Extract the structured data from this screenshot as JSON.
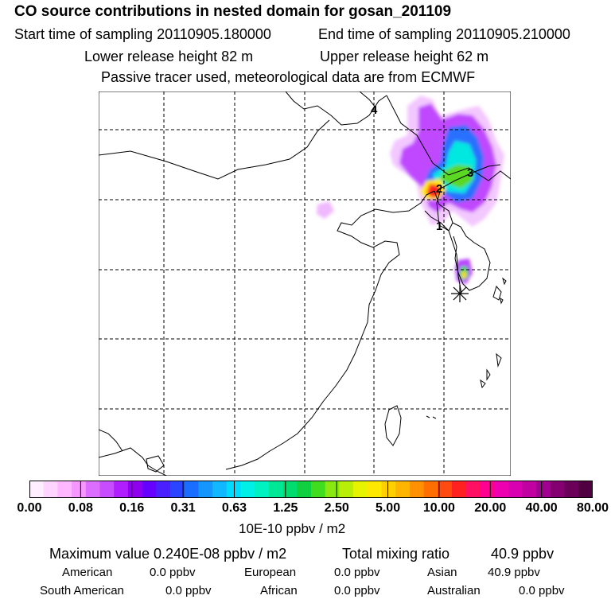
{
  "header": {
    "title": "CO  source contributions in nested domain for gosan_201109",
    "start_label": "Start time of sampling 20110905.180000",
    "end_label": "End time of sampling 20110905.210000",
    "lower_label": "Lower release height   82 m",
    "upper_label": "Upper release height   62 m",
    "info": "Passive tracer used, meteorological data are from ECMWF"
  },
  "map": {
    "track_labels": [
      "4",
      "3",
      "2",
      "1"
    ],
    "colors": {
      "grid": "#000000",
      "coast": "#000000"
    }
  },
  "colorbar": {
    "colors": [
      "#ffeeff",
      "#ffd5ff",
      "#ffb8ff",
      "#f597ff",
      "#dc6dff",
      "#c74bff",
      "#b020ff",
      "#9000ee",
      "#6600ff",
      "#4a20ff",
      "#2a44ff",
      "#1a6eff",
      "#1596ff",
      "#12b8ff",
      "#00dcff",
      "#00f0e8",
      "#00f2c2",
      "#00e896",
      "#00dc6e",
      "#10d040",
      "#40dc20",
      "#88e810",
      "#b8ee08",
      "#e6f400",
      "#ffe800",
      "#ffd000",
      "#ffb400",
      "#ff9000",
      "#ff6e00",
      "#ff4a10",
      "#ff2020",
      "#ff1060",
      "#ff0090",
      "#ee00b0",
      "#d800b0",
      "#c000a0",
      "#a00090",
      "#840070",
      "#6a0058",
      "#500040"
    ],
    "ticks": [
      "0.00",
      "0.08",
      "0.16",
      "0.31",
      "0.63",
      "1.25",
      "2.50",
      "5.00",
      "10.00",
      "20.00",
      "40.00",
      "80.00"
    ],
    "units": "10E-10 ppbv / m2"
  },
  "stats": {
    "max_label": "Maximum value  0.240E-08 ppbv / m2",
    "total_label": "Total mixing ratio",
    "total_value": "40.9 ppbv"
  },
  "regions": [
    {
      "name": "American",
      "value": "0.0 ppbv"
    },
    {
      "name": "European",
      "value": "0.0 ppbv"
    },
    {
      "name": "Asian",
      "value": "40.9 ppbv"
    },
    {
      "name": "South American",
      "value": "0.0 ppbv"
    },
    {
      "name": "African",
      "value": "0.0 ppbv"
    },
    {
      "name": "Australian",
      "value": "0.0 ppbv"
    }
  ]
}
